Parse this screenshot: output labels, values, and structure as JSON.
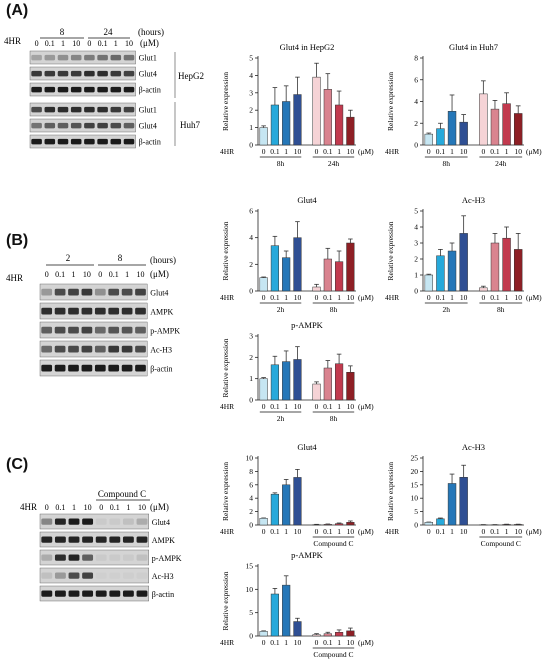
{
  "panels": {
    "A": {
      "label": "(A)",
      "blot": {
        "group_label": "4HR",
        "time_values": [
          "8",
          "24"
        ],
        "time_unit": "(hours)",
        "conc_values": [
          "0",
          "0.1",
          "1",
          "10",
          "0",
          "0.1",
          "1",
          "10"
        ],
        "conc_unit": "(μM)",
        "rows": [
          "Glut1",
          "Glut4",
          "β-actin",
          "Glut1",
          "Glut4",
          "β-actin"
        ],
        "cell_lines": [
          "HepG2",
          "Huh7"
        ]
      }
    },
    "B": {
      "label": "(B)",
      "blot": {
        "group_label": "4HR",
        "time_values": [
          "2",
          "8"
        ],
        "time_unit": "(hours)",
        "conc_values": [
          "0",
          "0.1",
          "1",
          "10",
          "0",
          "0.1",
          "1",
          "10"
        ],
        "conc_unit": "(μM)",
        "rows": [
          "Glut4",
          "AMPK",
          "p-AMPK",
          "Ac-H3",
          "β-actin"
        ]
      }
    },
    "C": {
      "label": "(C)",
      "blot": {
        "group_label": "4HR",
        "treatment_label": "Compound C",
        "conc_values": [
          "0",
          "0.1",
          "1",
          "10",
          "0",
          "0.1",
          "1",
          "10"
        ],
        "conc_unit": "(μM)",
        "rows": [
          "Glut4",
          "AMPK",
          "p-AMPK",
          "Ac-H3",
          "β-actin"
        ]
      }
    }
  },
  "chart_data": [
    {
      "id": "A1",
      "type": "bar",
      "title": "Glut4 in HepG2",
      "ylabel": "Relative expression",
      "ylim": [
        0,
        5
      ],
      "yticks": [
        0,
        1,
        2,
        3,
        4,
        5
      ],
      "categories": [
        "0",
        "0.1",
        "1",
        "10",
        "0",
        "0.1",
        "1",
        "10"
      ],
      "values": [
        1.0,
        2.3,
        2.5,
        2.9,
        3.9,
        3.2,
        2.3,
        1.6
      ],
      "errors": [
        0.1,
        1.0,
        0.9,
        1.0,
        0.8,
        0.9,
        0.8,
        0.4
      ],
      "groups": [
        "8h",
        "24h"
      ],
      "xgroup_label": "4HR",
      "unit": "(μM)"
    },
    {
      "id": "A2",
      "type": "bar",
      "title": "Glut4 in Huh7",
      "ylabel": "Relative expression",
      "ylim": [
        0,
        8
      ],
      "yticks": [
        0,
        2,
        4,
        6,
        8
      ],
      "categories": [
        "0",
        "0.1",
        "1",
        "10",
        "0",
        "0.1",
        "1",
        "10"
      ],
      "values": [
        1.0,
        1.5,
        3.1,
        2.1,
        4.7,
        3.3,
        3.8,
        2.9
      ],
      "errors": [
        0.1,
        0.5,
        1.5,
        0.7,
        1.2,
        0.8,
        1.0,
        0.7
      ],
      "groups": [
        "8h",
        "24h"
      ],
      "xgroup_label": "4HR",
      "unit": "(μM)"
    },
    {
      "id": "B1",
      "type": "bar",
      "title": "Glut4",
      "ylabel": "Relative expression",
      "ylim": [
        0,
        6
      ],
      "yticks": [
        0,
        2,
        4,
        6
      ],
      "categories": [
        "0",
        "0.1",
        "1",
        "10",
        "0",
        "0.1",
        "1",
        "10"
      ],
      "values": [
        1.0,
        3.4,
        2.5,
        4.0,
        0.3,
        2.4,
        2.2,
        3.6
      ],
      "errors": [
        0.05,
        0.7,
        0.5,
        1.2,
        0.2,
        0.8,
        0.8,
        0.3
      ],
      "groups": [
        "2h",
        "8h"
      ],
      "xgroup_label": "4HR",
      "unit": "(μM)"
    },
    {
      "id": "B2",
      "type": "bar",
      "title": "Ac-H3",
      "ylabel": "Relative expression",
      "ylim": [
        0,
        5
      ],
      "yticks": [
        0,
        1,
        2,
        3,
        4,
        5
      ],
      "categories": [
        "0",
        "0.1",
        "1",
        "10",
        "0",
        "0.1",
        "1",
        "10"
      ],
      "values": [
        1.0,
        2.2,
        2.5,
        3.6,
        0.2,
        3.0,
        3.3,
        2.6
      ],
      "errors": [
        0.05,
        0.4,
        0.5,
        1.1,
        0.1,
        0.6,
        0.7,
        1.0
      ],
      "groups": [
        "2h",
        "8h"
      ],
      "xgroup_label": "4HR",
      "unit": "(μM)"
    },
    {
      "id": "B3",
      "type": "bar",
      "title": "p-AMPK",
      "ylabel": "Relative expression",
      "ylim": [
        0,
        3
      ],
      "yticks": [
        0,
        1,
        2,
        3
      ],
      "categories": [
        "0",
        "0.1",
        "1",
        "10",
        "0",
        "0.1",
        "1",
        "10"
      ],
      "values": [
        1.0,
        1.65,
        1.8,
        1.9,
        0.75,
        1.5,
        1.7,
        1.3
      ],
      "errors": [
        0.05,
        0.4,
        0.5,
        0.6,
        0.1,
        0.35,
        0.45,
        0.3
      ],
      "groups": [
        "2h",
        "8h"
      ],
      "xgroup_label": "4HR",
      "unit": "(μM)"
    },
    {
      "id": "C1",
      "type": "bar",
      "title": "Glut4",
      "ylabel": "Relative expression",
      "ylim": [
        0,
        10
      ],
      "yticks": [
        0,
        2,
        4,
        6,
        8,
        10
      ],
      "categories": [
        "0",
        "0.1",
        "1",
        "10",
        "0",
        "0.1",
        "1",
        "10"
      ],
      "values": [
        1.0,
        4.6,
        6.0,
        7.1,
        0.05,
        0.1,
        0.2,
        0.4
      ],
      "errors": [
        0.05,
        0.2,
        0.8,
        1.2,
        0.05,
        0.05,
        0.1,
        0.2
      ],
      "groups": [
        "",
        "Compound C"
      ],
      "xgroup_label": "4HR",
      "unit": "(μM)"
    },
    {
      "id": "C2",
      "type": "bar",
      "title": "Ac-H3",
      "ylabel": "Relative expression",
      "ylim": [
        0,
        25
      ],
      "yticks": [
        0,
        5,
        10,
        15,
        20,
        25
      ],
      "categories": [
        "0",
        "0.1",
        "1",
        "10",
        "0",
        "0.1",
        "1",
        "10"
      ],
      "values": [
        1.0,
        2.3,
        15.5,
        17.8,
        0.1,
        0.1,
        0.2,
        0.2
      ],
      "errors": [
        0.1,
        0.3,
        3.5,
        4.5,
        0.05,
        0.05,
        0.1,
        0.1
      ],
      "groups": [
        "",
        "Compound C"
      ],
      "xgroup_label": "4HR",
      "unit": "(μM)"
    },
    {
      "id": "C3",
      "type": "bar",
      "title": "p-AMPK",
      "ylabel": "Relative expression",
      "ylim": [
        0,
        15
      ],
      "yticks": [
        0,
        5,
        10,
        15
      ],
      "categories": [
        "0",
        "0.1",
        "1",
        "10",
        "0",
        "0.1",
        "1",
        "10"
      ],
      "values": [
        1.0,
        9.0,
        10.9,
        3.1,
        0.3,
        0.5,
        0.8,
        1.1
      ],
      "errors": [
        0.1,
        1.2,
        2.0,
        0.7,
        0.2,
        0.3,
        0.5,
        0.6
      ],
      "groups": [
        "",
        "Compound C"
      ],
      "xgroup_label": "4HR",
      "unit": "(μM)"
    }
  ],
  "palette": {
    "first_group": [
      "#c6e6f2",
      "#26a9db",
      "#2577b8",
      "#2f4f93"
    ],
    "second_group": [
      "#f5d3d6",
      "#d9838f",
      "#c23a4e",
      "#8e1f25"
    ],
    "axis": "#222222",
    "error": "#333333",
    "band_dark": "#1b1b1b",
    "band_bg": "#d3d3d3"
  }
}
